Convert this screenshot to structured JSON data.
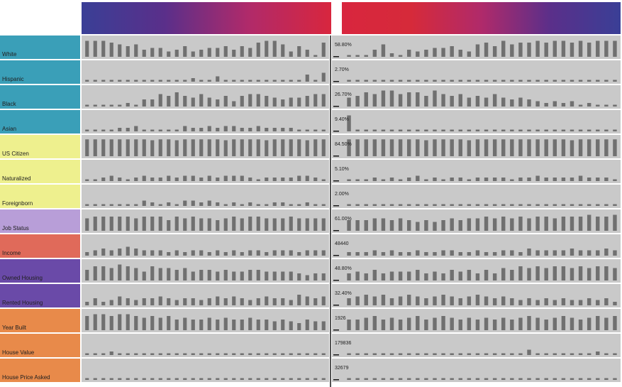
{
  "chart_data": {
    "type": "bar",
    "title": "",
    "xlabel": "",
    "ylabel": "",
    "grid": false,
    "legend": "none",
    "header_gradient": [
      "#3a3f96",
      "#5a2f8a",
      "#b02a6a",
      "#d8263e",
      "#d62a3a",
      "#b02a6a",
      "#5a2f8a",
      "#3a3f96"
    ],
    "rows": [
      {
        "label": "White",
        "color": "#3a9fb8",
        "value": "58.80%",
        "left": [
          0.9,
          0.9,
          0.9,
          0.8,
          0.7,
          0.6,
          0.7,
          0.4,
          0.5,
          0.5,
          0.3,
          0.4,
          0.6,
          0.3,
          0.4,
          0.5,
          0.5,
          0.6,
          0.4,
          0.6,
          0.5,
          0.8,
          0.9,
          0.9,
          0.7,
          0.3,
          0.6,
          0.4,
          0.1,
          0.8
        ],
        "right": [
          0.1,
          0.1,
          0.1,
          0.4,
          0.7,
          0.2,
          0.1,
          0.4,
          0.3,
          0.4,
          0.5,
          0.5,
          0.6,
          0.4,
          0.3,
          0.7,
          0.8,
          0.6,
          0.9,
          0.7,
          0.8,
          0.8,
          0.9,
          0.8,
          0.9,
          0.9,
          0.8,
          0.9,
          0.8,
          0.9,
          0.9,
          0.9
        ]
      },
      {
        "label": "Hispanic",
        "color": "#3a9fb8",
        "value": "2.70%",
        "left": [
          0.1,
          0.1,
          0.1,
          0.1,
          0.1,
          0.1,
          0.1,
          0.1,
          0.1,
          0.1,
          0.1,
          0.1,
          0.1,
          0.2,
          0.1,
          0.1,
          0.3,
          0.1,
          0.1,
          0.1,
          0.1,
          0.1,
          0.1,
          0.1,
          0.1,
          0.1,
          0.1,
          0.4,
          0.1,
          0.5
        ],
        "right": [
          0.1,
          0.1,
          0.1,
          0.1,
          0.1,
          0.1,
          0.1,
          0.1,
          0.1,
          0.1,
          0.1,
          0.1,
          0.1,
          0.1,
          0.1,
          0.1,
          0.1,
          0.1,
          0.1,
          0.1,
          0.1,
          0.1,
          0.1,
          0.1,
          0.1,
          0.1,
          0.1,
          0.1,
          0.1,
          0.1,
          0.1,
          0.1
        ]
      },
      {
        "label": "Black",
        "color": "#3a9fb8",
        "value": "26.70%",
        "left": [
          0.1,
          0.1,
          0.1,
          0.1,
          0.1,
          0.2,
          0.1,
          0.4,
          0.4,
          0.7,
          0.6,
          0.8,
          0.6,
          0.5,
          0.7,
          0.5,
          0.4,
          0.6,
          0.3,
          0.6,
          0.7,
          0.7,
          0.6,
          0.5,
          0.4,
          0.5,
          0.5,
          0.6,
          0.7,
          0.7
        ],
        "right": [
          0.5,
          0.6,
          0.8,
          0.7,
          0.9,
          0.9,
          0.7,
          0.8,
          0.8,
          0.6,
          0.9,
          0.7,
          0.6,
          0.7,
          0.5,
          0.6,
          0.5,
          0.7,
          0.5,
          0.4,
          0.5,
          0.4,
          0.3,
          0.2,
          0.3,
          0.2,
          0.3,
          0.1,
          0.2,
          0.1,
          0.1,
          0.1
        ]
      },
      {
        "label": "Asian",
        "color": "#3a9fb8",
        "value": "9.40%",
        "left": [
          0.1,
          0.1,
          0.1,
          0.1,
          0.2,
          0.2,
          0.3,
          0.1,
          0.1,
          0.1,
          0.1,
          0.1,
          0.3,
          0.2,
          0.2,
          0.3,
          0.2,
          0.3,
          0.3,
          0.2,
          0.2,
          0.3,
          0.2,
          0.2,
          0.2,
          0.2,
          0.1,
          0.1,
          0.1,
          0.1
        ],
        "right": [
          0.9,
          0.1,
          0.1,
          0.1,
          0.1,
          0.1,
          0.1,
          0.1,
          0.1,
          0.1,
          0.1,
          0.1,
          0.1,
          0.1,
          0.1,
          0.1,
          0.1,
          0.1,
          0.1,
          0.1,
          0.1,
          0.1,
          0.1,
          0.1,
          0.1,
          0.1,
          0.1,
          0.1,
          0.1,
          0.1,
          0.1,
          0.1
        ]
      },
      {
        "label": "US Citizen",
        "color": "#eef08e",
        "value": "84.50%",
        "left": [
          0.95,
          0.95,
          0.95,
          0.95,
          0.95,
          0.95,
          0.95,
          0.95,
          0.9,
          0.95,
          0.95,
          0.9,
          0.95,
          0.95,
          0.95,
          0.95,
          0.95,
          0.9,
          0.95,
          0.95,
          0.95,
          0.95,
          0.9,
          0.95,
          0.95,
          0.95,
          0.95,
          0.9,
          0.95,
          0.95
        ],
        "right": [
          0.95,
          0.95,
          0.95,
          0.95,
          0.95,
          0.95,
          0.95,
          0.95,
          0.95,
          0.9,
          0.95,
          0.95,
          0.95,
          0.95,
          0.9,
          0.95,
          0.95,
          0.95,
          0.95,
          0.95,
          0.95,
          0.95,
          0.95,
          0.95,
          0.95,
          0.95,
          0.9,
          0.95,
          0.95,
          0.95,
          0.95,
          0.95
        ]
      },
      {
        "label": "Naturalized",
        "color": "#eef08e",
        "value": "5.10%",
        "left": [
          0.1,
          0.1,
          0.2,
          0.3,
          0.2,
          0.1,
          0.2,
          0.3,
          0.2,
          0.2,
          0.3,
          0.2,
          0.3,
          0.3,
          0.2,
          0.3,
          0.2,
          0.3,
          0.3,
          0.3,
          0.2,
          0.1,
          0.2,
          0.2,
          0.2,
          0.2,
          0.3,
          0.3,
          0.2,
          0.1
        ],
        "right": [
          0.1,
          0.1,
          0.1,
          0.2,
          0.1,
          0.2,
          0.1,
          0.2,
          0.3,
          0.1,
          0.2,
          0.1,
          0.2,
          0.2,
          0.1,
          0.2,
          0.2,
          0.2,
          0.2,
          0.1,
          0.2,
          0.2,
          0.3,
          0.2,
          0.2,
          0.2,
          0.2,
          0.3,
          0.2,
          0.2,
          0.2,
          0.1
        ]
      },
      {
        "label": "Foreignborn",
        "color": "#eef08e",
        "value": "2.00%",
        "left": [
          0.1,
          0.1,
          0.1,
          0.1,
          0.1,
          0.1,
          0.1,
          0.3,
          0.2,
          0.1,
          0.2,
          0.1,
          0.3,
          0.3,
          0.2,
          0.3,
          0.2,
          0.1,
          0.2,
          0.1,
          0.2,
          0.1,
          0.1,
          0.2,
          0.2,
          0.1,
          0.1,
          0.2,
          0.1,
          0.1
        ],
        "right": [
          0.1,
          0.1,
          0.1,
          0.1,
          0.1,
          0.1,
          0.1,
          0.1,
          0.1,
          0.1,
          0.1,
          0.1,
          0.1,
          0.1,
          0.1,
          0.1,
          0.1,
          0.1,
          0.1,
          0.1,
          0.1,
          0.1,
          0.1,
          0.1,
          0.1,
          0.1,
          0.1,
          0.1,
          0.1,
          0.1,
          0.1,
          0.1
        ]
      },
      {
        "label": "Job Status",
        "color": "#b89ed8",
        "value": "61.00%",
        "left": [
          0.7,
          0.8,
          0.8,
          0.8,
          0.8,
          0.8,
          0.7,
          0.8,
          0.8,
          0.8,
          0.6,
          0.8,
          0.7,
          0.8,
          0.7,
          0.7,
          0.6,
          0.7,
          0.8,
          0.7,
          0.8,
          0.8,
          0.7,
          0.7,
          0.7,
          0.8,
          0.7,
          0.7,
          0.7,
          0.7
        ],
        "right": [
          0.6,
          0.6,
          0.6,
          0.7,
          0.7,
          0.6,
          0.7,
          0.6,
          0.5,
          0.6,
          0.5,
          0.6,
          0.7,
          0.6,
          0.7,
          0.7,
          0.8,
          0.7,
          0.8,
          0.7,
          0.8,
          0.7,
          0.8,
          0.8,
          0.7,
          0.8,
          0.8,
          0.8,
          0.9,
          0.8,
          0.8,
          0.9
        ]
      },
      {
        "label": "Income",
        "color": "#e06a5a",
        "value": "48440",
        "left": [
          0.2,
          0.3,
          0.4,
          0.3,
          0.4,
          0.5,
          0.4,
          0.3,
          0.3,
          0.3,
          0.2,
          0.3,
          0.2,
          0.3,
          0.3,
          0.2,
          0.3,
          0.2,
          0.3,
          0.2,
          0.3,
          0.3,
          0.2,
          0.3,
          0.3,
          0.3,
          0.2,
          0.3,
          0.3,
          0.3
        ],
        "right": [
          0.2,
          0.2,
          0.2,
          0.3,
          0.2,
          0.3,
          0.2,
          0.2,
          0.3,
          0.2,
          0.2,
          0.3,
          0.3,
          0.2,
          0.2,
          0.3,
          0.2,
          0.2,
          0.3,
          0.3,
          0.2,
          0.4,
          0.3,
          0.3,
          0.3,
          0.3,
          0.4,
          0.3,
          0.3,
          0.3,
          0.4,
          0.3
        ]
      },
      {
        "label": "Owned Housing",
        "color": "#6a4aa8",
        "value": "48.80%",
        "left": [
          0.6,
          0.8,
          0.8,
          0.7,
          0.9,
          0.8,
          0.7,
          0.5,
          0.8,
          0.7,
          0.7,
          0.6,
          0.7,
          0.5,
          0.6,
          0.6,
          0.5,
          0.6,
          0.5,
          0.5,
          0.6,
          0.6,
          0.5,
          0.5,
          0.5,
          0.5,
          0.4,
          0.3,
          0.4,
          0.4
        ],
        "right": [
          0.4,
          0.5,
          0.4,
          0.6,
          0.4,
          0.5,
          0.5,
          0.5,
          0.6,
          0.4,
          0.5,
          0.4,
          0.6,
          0.5,
          0.6,
          0.4,
          0.6,
          0.4,
          0.7,
          0.6,
          0.8,
          0.7,
          0.8,
          0.7,
          0.8,
          0.8,
          0.7,
          0.8,
          0.7,
          0.8,
          0.8,
          0.7
        ]
      },
      {
        "label": "Rented Housing",
        "color": "#6a4aa8",
        "value": "32.40%",
        "left": [
          0.2,
          0.4,
          0.2,
          0.3,
          0.5,
          0.4,
          0.3,
          0.4,
          0.4,
          0.5,
          0.4,
          0.3,
          0.4,
          0.4,
          0.3,
          0.4,
          0.5,
          0.4,
          0.5,
          0.4,
          0.3,
          0.4,
          0.5,
          0.4,
          0.4,
          0.3,
          0.6,
          0.5,
          0.4,
          0.5
        ],
        "right": [
          0.4,
          0.5,
          0.6,
          0.5,
          0.6,
          0.4,
          0.5,
          0.6,
          0.5,
          0.4,
          0.5,
          0.6,
          0.5,
          0.4,
          0.5,
          0.6,
          0.5,
          0.4,
          0.5,
          0.4,
          0.3,
          0.4,
          0.3,
          0.4,
          0.3,
          0.4,
          0.3,
          0.3,
          0.4,
          0.3,
          0.4,
          0.2
        ]
      },
      {
        "label": "Year Built",
        "color": "#e88a4a",
        "value": "1926",
        "left": [
          0.8,
          0.9,
          0.9,
          0.8,
          0.9,
          0.9,
          0.8,
          0.7,
          0.8,
          0.7,
          0.8,
          0.6,
          0.7,
          0.6,
          0.6,
          0.7,
          0.6,
          0.7,
          0.6,
          0.6,
          0.7,
          0.6,
          0.6,
          0.5,
          0.6,
          0.5,
          0.4,
          0.6,
          0.5,
          0.5
        ],
        "right": [
          0.6,
          0.6,
          0.7,
          0.8,
          0.6,
          0.7,
          0.6,
          0.7,
          0.8,
          0.6,
          0.7,
          0.8,
          0.7,
          0.6,
          0.7,
          0.6,
          0.7,
          0.6,
          0.7,
          0.6,
          0.7,
          0.8,
          0.7,
          0.6,
          0.7,
          0.8,
          0.7,
          0.6,
          0.7,
          0.8,
          0.7,
          0.8
        ]
      },
      {
        "label": "House Value",
        "color": "#e88a4a",
        "value": "179836",
        "left": [
          0.1,
          0.1,
          0.1,
          0.2,
          0.1,
          0.1,
          0.1,
          0.1,
          0.1,
          0.1,
          0.1,
          0.1,
          0.1,
          0.1,
          0.1,
          0.1,
          0.1,
          0.1,
          0.1,
          0.1,
          0.1,
          0.1,
          0.1,
          0.1,
          0.1,
          0.1,
          0.1,
          0.1,
          0.1,
          0.1
        ],
        "right": [
          0.1,
          0.1,
          0.1,
          0.1,
          0.1,
          0.1,
          0.1,
          0.1,
          0.1,
          0.1,
          0.1,
          0.1,
          0.1,
          0.1,
          0.1,
          0.1,
          0.1,
          0.1,
          0.1,
          0.1,
          0.1,
          0.3,
          0.1,
          0.1,
          0.1,
          0.1,
          0.1,
          0.1,
          0.1,
          0.2,
          0.1,
          0.1
        ]
      },
      {
        "label": "House Price Asked",
        "color": "#e88a4a",
        "value": "32679",
        "left": [
          0.1,
          0.1,
          0.1,
          0.1,
          0.1,
          0.1,
          0.1,
          0.1,
          0.1,
          0.1,
          0.1,
          0.1,
          0.1,
          0.1,
          0.1,
          0.1,
          0.1,
          0.1,
          0.1,
          0.1,
          0.1,
          0.1,
          0.1,
          0.1,
          0.1,
          0.1,
          0.1,
          0.1,
          0.1,
          0.1
        ],
        "right": [
          0.1,
          0.1,
          0.1,
          0.1,
          0.1,
          0.1,
          0.1,
          0.1,
          0.1,
          0.1,
          0.1,
          0.1,
          0.1,
          0.1,
          0.1,
          0.1,
          0.1,
          0.1,
          0.1,
          0.1,
          0.1,
          0.1,
          0.1,
          0.1,
          0.1,
          0.1,
          0.1,
          0.1,
          0.1,
          0.1,
          0.1,
          0.1
        ]
      }
    ]
  }
}
